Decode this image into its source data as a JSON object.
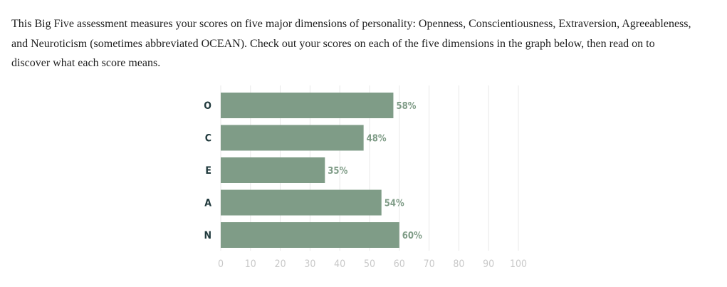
{
  "intro": {
    "text": "This Big Five assessment measures your scores on five major dimensions of personality: Openness, Conscientiousness, Extraversion, Agreeableness, and Neuroticism (sometimes abbreviated OCEAN). Check out your scores on each of the five dimensions in the graph below, then read on to discover what each score means."
  },
  "colors": {
    "bar": "#7f9c87",
    "bar_label": "#7f9c87",
    "category_label": "#213a3d",
    "tick_label": "#c8c8c8",
    "grid": "#e8e8e8"
  },
  "chart_data": {
    "type": "bar",
    "orientation": "horizontal",
    "categories": [
      "O",
      "C",
      "E",
      "A",
      "N"
    ],
    "values": [
      58,
      48,
      35,
      54,
      60
    ],
    "value_labels": [
      "58%",
      "48%",
      "35%",
      "54%",
      "60%"
    ],
    "xlim": [
      0,
      100
    ],
    "x_ticks": [
      0,
      10,
      20,
      30,
      40,
      50,
      60,
      70,
      80,
      90,
      100
    ],
    "grid": true,
    "title": "",
    "xlabel": "",
    "ylabel": ""
  }
}
